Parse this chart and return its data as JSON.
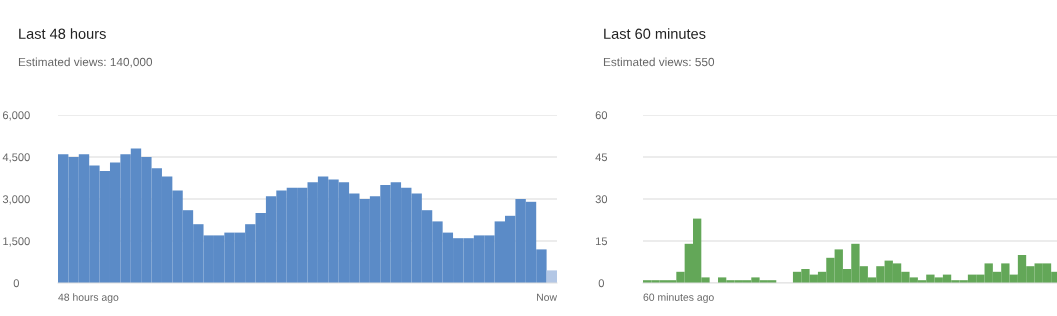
{
  "chart_data": [
    {
      "type": "bar",
      "title": "Last 48 hours",
      "subtitle": "Estimated views: 140,000",
      "categories": [
        null,
        null,
        null,
        null,
        null,
        null,
        null,
        null,
        null,
        null,
        null,
        null,
        null,
        null,
        null,
        null,
        null,
        null,
        null,
        null,
        null,
        null,
        null,
        null,
        null,
        null,
        null,
        null,
        null,
        null,
        null,
        null,
        null,
        null,
        null,
        null,
        null,
        null,
        null,
        null,
        null,
        null,
        null,
        null,
        null,
        null,
        null,
        null
      ],
      "values": [
        4600,
        4500,
        4600,
        4200,
        4000,
        4300,
        4600,
        4800,
        4500,
        4100,
        3800,
        3300,
        2600,
        2100,
        1700,
        1700,
        1800,
        1800,
        2100,
        2500,
        3100,
        3300,
        3400,
        3400,
        3600,
        3800,
        3700,
        3600,
        3200,
        3000,
        3100,
        3500,
        3600,
        3400,
        3200,
        2600,
        2200,
        1800,
        1600,
        1600,
        1700,
        1700,
        2200,
        2400,
        3000,
        2900,
        1200,
        450
      ],
      "colors": [
        "#5b8bc7",
        "#5b8bc7",
        "#5b8bc7",
        "#5b8bc7",
        "#5b8bc7",
        "#5b8bc7",
        "#5b8bc7",
        "#5b8bc7",
        "#5b8bc7",
        "#5b8bc7",
        "#5b8bc7",
        "#5b8bc7",
        "#5b8bc7",
        "#5b8bc7",
        "#5b8bc7",
        "#5b8bc7",
        "#5b8bc7",
        "#5b8bc7",
        "#5b8bc7",
        "#5b8bc7",
        "#5b8bc7",
        "#5b8bc7",
        "#5b8bc7",
        "#5b8bc7",
        "#5b8bc7",
        "#5b8bc7",
        "#5b8bc7",
        "#5b8bc7",
        "#5b8bc7",
        "#5b8bc7",
        "#5b8bc7",
        "#5b8bc7",
        "#5b8bc7",
        "#5b8bc7",
        "#5b8bc7",
        "#5b8bc7",
        "#5b8bc7",
        "#5b8bc7",
        "#5b8bc7",
        "#5b8bc7",
        "#5b8bc7",
        "#5b8bc7",
        "#5b8bc7",
        "#5b8bc7",
        "#5b8bc7",
        "#5b8bc7",
        "#5b8bc7",
        "#b3c7e5"
      ],
      "ylim": [
        0,
        6000
      ],
      "yticks": [
        {
          "value": 0,
          "label": "0"
        },
        {
          "value": 1500,
          "label": "1,500"
        },
        {
          "value": 3000,
          "label": "3,000"
        },
        {
          "value": 4500,
          "label": "4,500"
        },
        {
          "value": 6000,
          "label": "6,000"
        }
      ],
      "grid": "y",
      "annotations": [
        "48 hours ago",
        "Now"
      ]
    },
    {
      "type": "bar",
      "title": "Last 60 minutes",
      "subtitle": "Estimated views: 550",
      "categories": [
        null,
        null,
        null,
        null,
        null,
        null,
        null,
        null,
        null,
        null,
        null,
        null,
        null,
        null,
        null,
        null,
        null,
        null,
        null,
        null,
        null,
        null,
        null,
        null,
        null,
        null,
        null,
        null,
        null,
        null,
        null,
        null,
        null,
        null,
        null,
        null,
        null,
        null,
        null,
        null,
        null,
        null,
        null,
        null,
        null,
        null,
        null,
        null,
        null,
        null
      ],
      "values": [
        1,
        1,
        1,
        1,
        4,
        14,
        23,
        2,
        0,
        2,
        1,
        1,
        1,
        2,
        1,
        1,
        0,
        0,
        4,
        5,
        3,
        4,
        9,
        12,
        5,
        14,
        6,
        2,
        6,
        8,
        7,
        4,
        2,
        1,
        3,
        2,
        3,
        1,
        1,
        3,
        3,
        7,
        4,
        7,
        3,
        10,
        6,
        7,
        7,
        4
      ],
      "color": "#63a758",
      "ylim": [
        0,
        60
      ],
      "yticks": [
        0,
        15,
        30,
        45,
        60
      ],
      "grid": "y",
      "annotations": [
        "60 minutes ago"
      ]
    }
  ]
}
